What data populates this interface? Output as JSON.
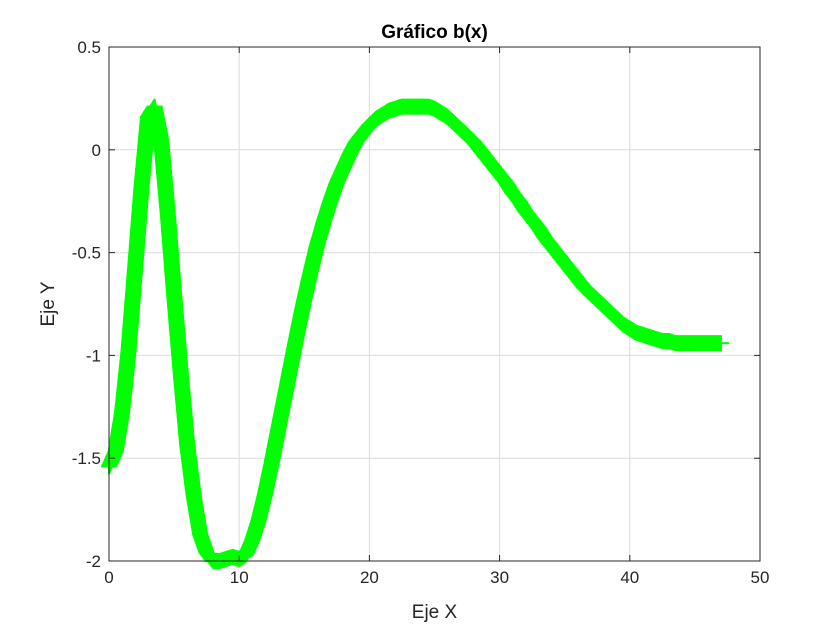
{
  "chart_data": {
    "type": "line",
    "title": "Gráfico b(x)",
    "xlabel": "Eje X",
    "ylabel": "Eje Y",
    "xlim": [
      0,
      50
    ],
    "ylim": [
      -2,
      0.5
    ],
    "x_ticks": [
      "0",
      "10",
      "20",
      "30",
      "40",
      "50"
    ],
    "y_ticks": [
      "-2",
      "-1.5",
      "-1",
      "-0.5",
      "0",
      "0.5"
    ],
    "grid": true,
    "series": [
      {
        "marker": "+",
        "color": "#00ff00",
        "x": [
          0,
          0.5,
          1,
          1.5,
          2,
          2.5,
          3,
          3.5,
          4,
          4.5,
          5,
          5.5,
          6,
          6.5,
          7,
          7.5,
          8,
          8.5,
          9,
          9.5,
          10,
          10.5,
          11,
          11.5,
          12,
          12.5,
          13,
          13.5,
          14,
          14.5,
          15,
          15.5,
          16,
          16.5,
          17,
          17.5,
          18,
          18.5,
          19,
          19.5,
          20,
          20.5,
          21,
          21.5,
          22,
          22.5,
          23,
          23.5,
          24,
          24.5,
          25,
          25.5,
          26,
          26.5,
          27,
          27.5,
          28,
          28.5,
          29,
          29.5,
          30,
          30.5,
          31,
          31.5,
          32,
          32.5,
          33,
          33.5,
          34,
          34.5,
          35,
          35.5,
          36,
          36.5,
          37,
          37.5,
          38,
          38.5,
          39,
          39.5,
          40,
          40.5,
          41,
          41.5,
          42,
          42.5,
          43,
          43.5,
          44,
          44.5,
          45,
          45.5,
          46,
          46.5,
          47
        ],
        "values": [
          -1.54,
          -1.47,
          -1.28,
          -0.98,
          -0.58,
          -0.18,
          0.16,
          0.21,
          0.05,
          -0.3,
          -0.7,
          -1.08,
          -1.43,
          -1.68,
          -1.87,
          -1.96,
          -2.0,
          -2.0,
          -1.99,
          -1.98,
          -1.99,
          -1.97,
          -1.9,
          -1.8,
          -1.67,
          -1.52,
          -1.36,
          -1.2,
          -1.04,
          -0.88,
          -0.73,
          -0.59,
          -0.46,
          -0.35,
          -0.25,
          -0.16,
          -0.09,
          -0.02,
          0.04,
          0.08,
          0.12,
          0.15,
          0.17,
          0.19,
          0.2,
          0.21,
          0.21,
          0.21,
          0.21,
          0.21,
          0.2,
          0.18,
          0.16,
          0.13,
          0.1,
          0.07,
          0.04,
          0.0,
          -0.04,
          -0.08,
          -0.12,
          -0.16,
          -0.21,
          -0.25,
          -0.3,
          -0.34,
          -0.38,
          -0.43,
          -0.47,
          -0.51,
          -0.55,
          -0.59,
          -0.63,
          -0.67,
          -0.7,
          -0.73,
          -0.76,
          -0.79,
          -0.82,
          -0.85,
          -0.87,
          -0.89,
          -0.9,
          -0.91,
          -0.92,
          -0.93,
          -0.93,
          -0.94,
          -0.94,
          -0.94,
          -0.94,
          -0.94,
          -0.94,
          -0.94,
          -0.94
        ]
      }
    ]
  }
}
